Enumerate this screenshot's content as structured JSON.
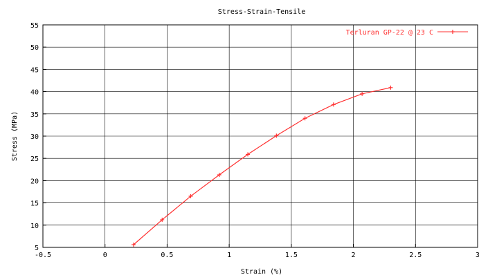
{
  "chart_data": {
    "type": "line",
    "title": "Stress-Strain-Tensile",
    "xlabel": "Strain (%)",
    "ylabel": "Stress (MPa)",
    "xlim": [
      -0.5,
      3
    ],
    "ylim": [
      5,
      55
    ],
    "x_ticks": [
      "-0.5",
      "0",
      "0.5",
      "1",
      "1.5",
      "2",
      "2.5",
      "3"
    ],
    "y_ticks": [
      "5",
      "10",
      "15",
      "20",
      "25",
      "30",
      "35",
      "40",
      "45",
      "50",
      "55"
    ],
    "grid": true,
    "legend_position": "top-right",
    "series": [
      {
        "name": "Terluran GP-22 @ 23 C",
        "color": "#ff3030",
        "x": [
          0.23,
          0.46,
          0.69,
          0.92,
          1.15,
          1.38,
          1.61,
          1.84,
          2.07,
          2.3
        ],
        "y": [
          5.6,
          11.2,
          16.5,
          21.3,
          25.9,
          30.1,
          34.0,
          37.1,
          39.5,
          40.9
        ]
      }
    ]
  }
}
